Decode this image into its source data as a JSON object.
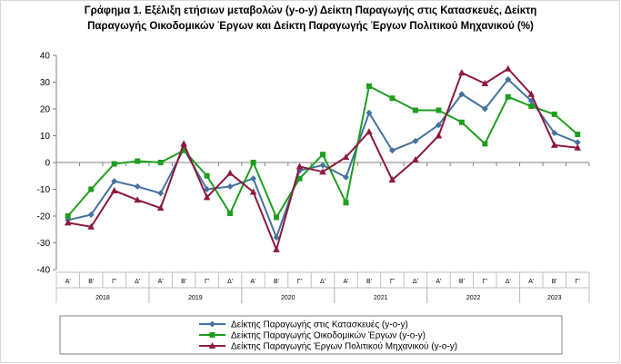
{
  "chart_data": {
    "type": "line",
    "title_line1": "Γράφημα 1. Εξέλιξη ετήσιων μεταβολών (y-o-y) Δείκτη Παραγωγής στις Κατασκευές, Δείκτη",
    "title_line2": "Παραγωγής Οικοδομικών Έργων και  Δείκτη Παραγωγής  Έργων Πολιτικού Μηχανικού (%)",
    "quarters": [
      "Α'",
      "Β'",
      "Γ'",
      "Δ'",
      "Α'",
      "Β'",
      "Γ'",
      "Δ'",
      "Α'",
      "Β'",
      "Γ'",
      "Δ'",
      "Α'",
      "Β'",
      "Γ'",
      "Δ'",
      "Α'",
      "Β'",
      "Γ'",
      "Δ'",
      "Α'",
      "Β'",
      "Γ'"
    ],
    "years": [
      {
        "label": "2018",
        "start": 0,
        "span": 4
      },
      {
        "label": "2019",
        "start": 4,
        "span": 4
      },
      {
        "label": "2020",
        "start": 8,
        "span": 4
      },
      {
        "label": "2021",
        "start": 12,
        "span": 4
      },
      {
        "label": "2022",
        "start": 16,
        "span": 4
      },
      {
        "label": "2023",
        "start": 20,
        "span": 3
      }
    ],
    "ylim": [
      -40,
      40
    ],
    "yticks": [
      -40,
      -30,
      -20,
      -10,
      0,
      10,
      20,
      30,
      40
    ],
    "grid": false,
    "legend_position": "bottom",
    "series": [
      {
        "name": "Δείκτης Παραγωγής στις Κατασκευές (y-o-y)",
        "color": "#44729e",
        "marker": "diamond",
        "values": [
          -21.5,
          -19.5,
          -7,
          -9,
          -11.5,
          5,
          -10,
          -9,
          -6,
          -28,
          -3,
          -1,
          -5.5,
          18.5,
          4.5,
          8,
          14,
          25.5,
          20,
          31,
          23,
          11,
          7.5
        ]
      },
      {
        "name": "Δείκτης Παραγωγής Οικοδομικών Έργων (y-o-y)",
        "color": "#1f9e1f",
        "marker": "square",
        "values": [
          -20,
          -10,
          -0.5,
          0.5,
          0,
          4.5,
          -5,
          -19,
          0,
          -20.5,
          -6,
          3,
          -15,
          28.5,
          24,
          19.5,
          19.5,
          15,
          7,
          24.5,
          21,
          18,
          10.5
        ]
      },
      {
        "name": "Δείκτης Παραγωγής Έργων Πολιτικού Μηχανικού (y-o-y)",
        "color": "#8c1a3c",
        "marker": "triangle",
        "values": [
          -22.5,
          -24,
          -10.5,
          -14,
          -17,
          7,
          -13,
          -4,
          -11,
          -32.5,
          -1.5,
          -3.5,
          2,
          11.5,
          -6.5,
          1,
          10,
          33.5,
          29.5,
          35,
          25.5,
          6.5,
          5.5
        ]
      }
    ]
  }
}
